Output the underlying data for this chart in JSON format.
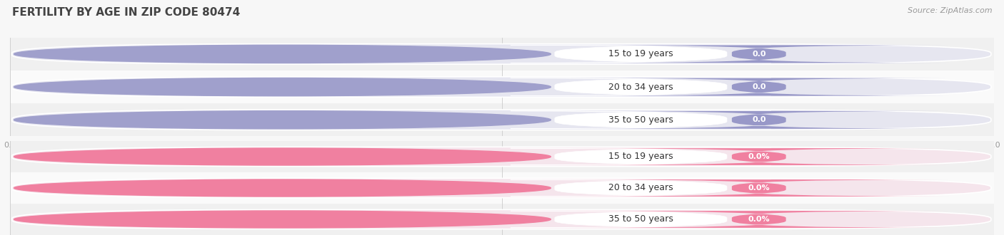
{
  "title": "FERTILITY BY AGE IN ZIP CODE 80474",
  "source_text": "Source: ZipAtlas.com",
  "groups": [
    {
      "labels": [
        "15 to 19 years",
        "20 to 34 years",
        "35 to 50 years"
      ],
      "values": [
        "0.0",
        "0.0",
        "0.0"
      ],
      "bar_bg_color": "#e6e6f0",
      "circle_color": "#a0a0cc",
      "badge_color": "#9898c8",
      "label_color": "#333333",
      "is_percentage": false
    },
    {
      "labels": [
        "15 to 19 years",
        "20 to 34 years",
        "35 to 50 years"
      ],
      "values": [
        "0.0%",
        "0.0%",
        "0.0%"
      ],
      "bar_bg_color": "#f5e5ec",
      "circle_color": "#f080a0",
      "badge_color": "#f080a0",
      "label_color": "#333333",
      "is_percentage": true
    }
  ],
  "background_color": "#f7f7f7",
  "row_bg_even": "#f0f0f0",
  "row_bg_odd": "#fafafa",
  "title_fontsize": 11,
  "source_fontsize": 8,
  "label_fontsize": 9,
  "badge_fontsize": 8,
  "tick_fontsize": 8,
  "tick_color": "#999999",
  "grid_color": "#d0d0d0"
}
